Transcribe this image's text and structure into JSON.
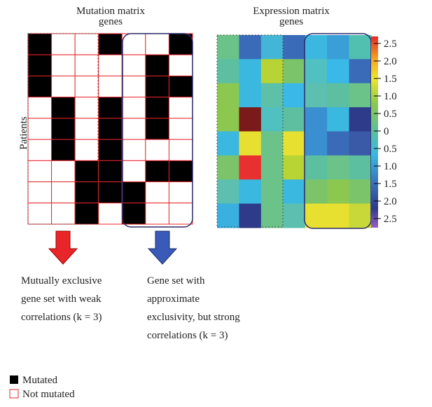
{
  "mutation": {
    "title": [
      "Mutation matrix",
      "genes"
    ],
    "cells": [
      [
        1,
        0,
        0,
        1,
        0,
        0,
        1
      ],
      [
        1,
        0,
        0,
        0,
        0,
        1,
        0
      ],
      [
        1,
        0,
        0,
        0,
        0,
        1,
        1
      ],
      [
        0,
        1,
        0,
        1,
        0,
        1,
        0
      ],
      [
        0,
        1,
        0,
        1,
        0,
        1,
        0
      ],
      [
        0,
        1,
        0,
        1,
        0,
        0,
        0
      ],
      [
        0,
        0,
        1,
        1,
        0,
        1,
        1
      ],
      [
        0,
        0,
        1,
        1,
        1,
        0,
        0
      ],
      [
        0,
        0,
        1,
        0,
        1,
        0,
        0
      ]
    ]
  },
  "expression": {
    "title": [
      "Expression matrix",
      "genes"
    ],
    "cells": [
      [
        "#6cc38a",
        "#3a6bb8",
        "#43b5d6",
        "#3a6bb8",
        "#3cb7e0",
        "#3a9fd6",
        "#52c0b0"
      ],
      [
        "#5dbfa0",
        "#3ab8e0",
        "#b7d334",
        "#7cc46a",
        "#50c0c0",
        "#3ab8e8",
        "#3a6bb8"
      ],
      [
        "#8cc850",
        "#3ab8e0",
        "#5dc0a8",
        "#3ab8e8",
        "#5cbfb0",
        "#5cbfa0",
        "#6cc38a"
      ],
      [
        "#8cc850",
        "#7a1a1a",
        "#50c0c0",
        "#5dbfa0",
        "#3a8fd0",
        "#3ab8e0",
        "#2e3a8a"
      ],
      [
        "#3ab8e0",
        "#e8e030",
        "#6cc38a",
        "#e8e030",
        "#3a8fd0",
        "#3a6bb8",
        "#3a5aa8"
      ],
      [
        "#7cc46a",
        "#e83030",
        "#6cc38a",
        "#b7d334",
        "#5cbfa0",
        "#6cc38a",
        "#5cbfa0"
      ],
      [
        "#5cbfb0",
        "#3ab8e0",
        "#6cc38a",
        "#3ab8e0",
        "#7cc46a",
        "#8cc850",
        "#7cc46a"
      ],
      [
        "#3ab0e0",
        "#2e3a8a",
        "#6cc38a",
        "#5cbfb0",
        "#e8e030",
        "#e8e030",
        "#c8d838"
      ]
    ]
  },
  "colorbar": {
    "labels": [
      "2.5",
      "2.0",
      "1.5",
      "1.0",
      "0.5",
      "0",
      "0.5",
      "1.0",
      "1.5",
      "2.0",
      "2.5"
    ]
  },
  "y_label": "Patients",
  "left_caption": [
    "Mutually exclusive",
    "gene set with weak",
    "correlations (k = 3)"
  ],
  "right_caption": [
    "Gene set with",
    "approximate",
    "exclusivity, but strong",
    "correlations (k = 3)"
  ],
  "legend": [
    "Mutated",
    "Not mutated"
  ]
}
